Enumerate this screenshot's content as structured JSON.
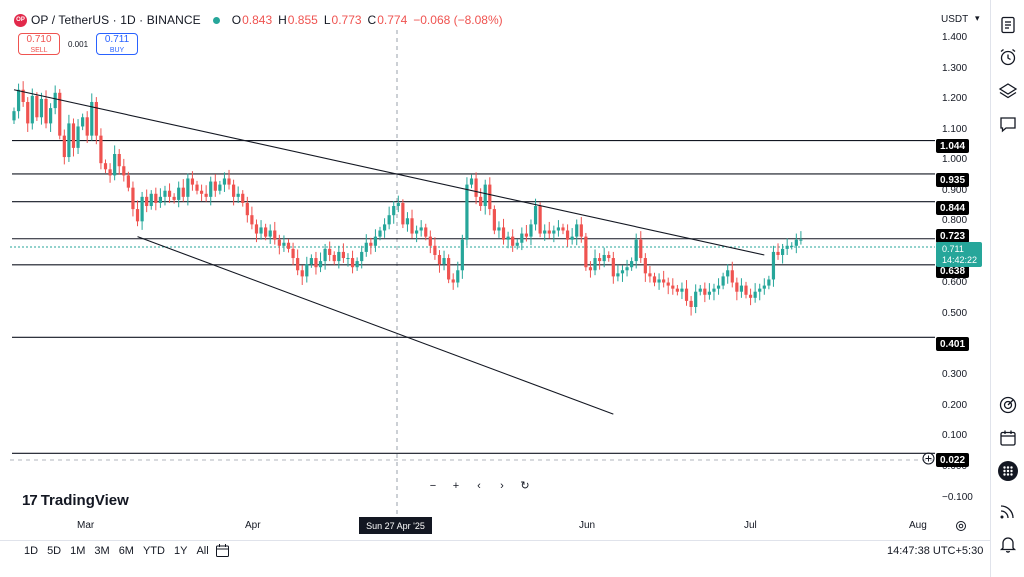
{
  "header": {
    "logo_text": "OP",
    "symbol_title": "OP / TetherUS · 1D · BINANCE",
    "ohlc": [
      {
        "key": "O",
        "value": "0.843"
      },
      {
        "key": "H",
        "value": "0.855"
      },
      {
        "key": "L",
        "value": "0.773"
      },
      {
        "key": "C",
        "value": "0.774"
      },
      {
        "key": "",
        "value": "−0.068 (−8.08%)"
      }
    ]
  },
  "trade": {
    "sell_price": "0.710",
    "sell_label": "SELL",
    "spread": "0.001",
    "buy_price": "0.711",
    "buy_label": "BUY"
  },
  "price_axis": {
    "currency": "USDT",
    "ticks": [
      "1.400",
      "1.300",
      "1.200",
      "1.100",
      "1.000",
      "0.900",
      "0.800",
      "0.600",
      "0.500",
      "0.300",
      "0.200",
      "0.100",
      "0.000",
      "−0.100"
    ],
    "levels": [
      "1.044",
      "0.935",
      "0.844",
      "0.723",
      "0.638",
      "0.401",
      "0.022"
    ],
    "current_price": "0.711",
    "countdown": "14:42:22"
  },
  "date_axis": {
    "ticks": [
      "Mar",
      "Apr",
      "Jun",
      "Jul",
      "Aug"
    ],
    "crosshair_date": "Sun 27 Apr '25"
  },
  "toolbar": {
    "zoom_out": "−",
    "zoom_in": "+",
    "scroll_left": "‹",
    "scroll_right": "›",
    "reset": "↻"
  },
  "brand": {
    "name": "TradingView"
  },
  "bottom": {
    "ranges": [
      "1D",
      "5D",
      "1M",
      "3M",
      "6M",
      "YTD",
      "1Y",
      "All"
    ],
    "clock": "14:47:38 UTC+5:30"
  },
  "colors": {
    "up": "#26a69a",
    "down": "#ef5350",
    "line": "#131722"
  },
  "chart_data": {
    "type": "candlestick",
    "symbol": "OP / TetherUS",
    "interval": "1D",
    "ylim": [
      -0.1,
      1.4
    ],
    "horizontal_levels": [
      1.044,
      0.935,
      0.844,
      0.723,
      0.638,
      0.401,
      0.022
    ],
    "trendlines": [
      {
        "from": {
          "x": "Feb 16",
          "y": 1.21
        },
        "to": {
          "x": "Jul 29",
          "y": 0.67
        }
      },
      {
        "from": {
          "x": "Mar 12",
          "y": 0.73
        },
        "to": {
          "x": "Jun 26",
          "y": 0.15
        }
      }
    ],
    "close": [
      1.14,
      1.21,
      1.17,
      1.1,
      1.19,
      1.12,
      1.18,
      1.1,
      1.15,
      1.2,
      1.06,
      0.99,
      1.1,
      1.02,
      1.09,
      1.12,
      1.06,
      1.17,
      1.06,
      0.97,
      0.95,
      0.93,
      1.0,
      0.96,
      0.93,
      0.89,
      0.82,
      0.78,
      0.86,
      0.83,
      0.87,
      0.84,
      0.86,
      0.88,
      0.86,
      0.85,
      0.89,
      0.86,
      0.92,
      0.9,
      0.88,
      0.87,
      0.86,
      0.91,
      0.88,
      0.9,
      0.92,
      0.9,
      0.86,
      0.87,
      0.84,
      0.8,
      0.77,
      0.74,
      0.76,
      0.73,
      0.75,
      0.72,
      0.7,
      0.71,
      0.69,
      0.66,
      0.62,
      0.6,
      0.64,
      0.66,
      0.63,
      0.65,
      0.69,
      0.67,
      0.65,
      0.68,
      0.66,
      0.66,
      0.63,
      0.65,
      0.68,
      0.71,
      0.7,
      0.73,
      0.75,
      0.77,
      0.8,
      0.83,
      0.84,
      0.77,
      0.79,
      0.74,
      0.75,
      0.76,
      0.73,
      0.7,
      0.67,
      0.64,
      0.66,
      0.59,
      0.58,
      0.62,
      0.72,
      0.9,
      0.92,
      0.86,
      0.83,
      0.9,
      0.82,
      0.75,
      0.76,
      0.72,
      0.73,
      0.7,
      0.71,
      0.74,
      0.73,
      0.77,
      0.83,
      0.74,
      0.75,
      0.74,
      0.75,
      0.76,
      0.75,
      0.72,
      0.73,
      0.77,
      0.73,
      0.63,
      0.62,
      0.66,
      0.65,
      0.67,
      0.66,
      0.6,
      0.61,
      0.62,
      0.63,
      0.65,
      0.72,
      0.66,
      0.61,
      0.6,
      0.58,
      0.59,
      0.58,
      0.57,
      0.56,
      0.55,
      0.56,
      0.52,
      0.5,
      0.55,
      0.56,
      0.54,
      0.55,
      0.56,
      0.57,
      0.6,
      0.62,
      0.58,
      0.55,
      0.57,
      0.54,
      0.53,
      0.55,
      0.56,
      0.57,
      0.59,
      0.68,
      0.67,
      0.69,
      0.7,
      0.7,
      0.72,
      0.72
    ]
  }
}
